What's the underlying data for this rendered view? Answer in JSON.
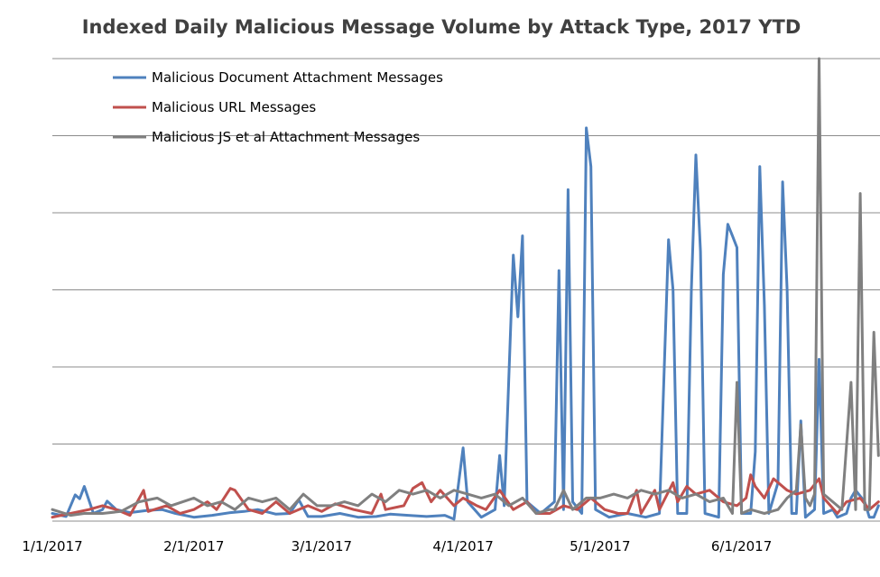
{
  "chart_data": {
    "type": "line",
    "title": "Indexed Daily Malicious Message Volume by Attack Type, 2017 YTD",
    "xlabel": "",
    "ylabel": "",
    "x_ticks": [
      "1/1/2017",
      "2/1/2017",
      "3/1/2017",
      "4/1/2017",
      "5/1/2017",
      "6/1/2017"
    ],
    "x_range": [
      "2017-01-01",
      "2017-06-26"
    ],
    "ylim": [
      0,
      1.2
    ],
    "y_gridlines": [
      0.2,
      0.4,
      0.6,
      0.8,
      1.0,
      1.2
    ],
    "y_tick_labels_shown": false,
    "grid": true,
    "legend_position": "top-left",
    "series": [
      {
        "name": "Malicious Document Attachment Messages",
        "color": "#4f81bd",
        "points": [
          [
            "2017-01-01",
            0.02
          ],
          [
            "2017-01-04",
            0.012
          ],
          [
            "2017-01-06",
            0.068
          ],
          [
            "2017-01-07",
            0.058
          ],
          [
            "2017-01-08",
            0.09
          ],
          [
            "2017-01-10",
            0.02
          ],
          [
            "2017-01-12",
            0.03
          ],
          [
            "2017-01-13",
            0.052
          ],
          [
            "2017-01-15",
            0.03
          ],
          [
            "2017-01-18",
            0.022
          ],
          [
            "2017-01-22",
            0.028
          ],
          [
            "2017-01-25",
            0.03
          ],
          [
            "2017-01-28",
            0.02
          ],
          [
            "2017-02-01",
            0.01
          ],
          [
            "2017-02-05",
            0.015
          ],
          [
            "2017-02-09",
            0.022
          ],
          [
            "2017-02-12",
            0.025
          ],
          [
            "2017-02-15",
            0.03
          ],
          [
            "2017-02-19",
            0.018
          ],
          [
            "2017-02-22",
            0.02
          ],
          [
            "2017-02-24",
            0.055
          ],
          [
            "2017-02-26",
            0.012
          ],
          [
            "2017-03-01",
            0.012
          ],
          [
            "2017-03-05",
            0.02
          ],
          [
            "2017-03-09",
            0.01
          ],
          [
            "2017-03-13",
            0.012
          ],
          [
            "2017-03-16",
            0.018
          ],
          [
            "2017-03-20",
            0.015
          ],
          [
            "2017-03-24",
            0.012
          ],
          [
            "2017-03-28",
            0.015
          ],
          [
            "2017-03-30",
            0.005
          ],
          [
            "2017-04-01",
            0.19
          ],
          [
            "2017-04-02",
            0.05
          ],
          [
            "2017-04-05",
            0.01
          ],
          [
            "2017-04-08",
            0.03
          ],
          [
            "2017-04-09",
            0.17
          ],
          [
            "2017-04-10",
            0.04
          ],
          [
            "2017-04-12",
            0.69
          ],
          [
            "2017-04-13",
            0.53
          ],
          [
            "2017-04-14",
            0.74
          ],
          [
            "2017-04-15",
            0.05
          ],
          [
            "2017-04-18",
            0.02
          ],
          [
            "2017-04-21",
            0.05
          ],
          [
            "2017-04-22",
            0.65
          ],
          [
            "2017-04-23",
            0.03
          ],
          [
            "2017-04-24",
            0.86
          ],
          [
            "2017-04-25",
            0.05
          ],
          [
            "2017-04-27",
            0.02
          ],
          [
            "2017-04-28",
            1.02
          ],
          [
            "2017-04-29",
            0.92
          ],
          [
            "2017-04-30",
            0.03
          ],
          [
            "2017-05-03",
            0.01
          ],
          [
            "2017-05-07",
            0.02
          ],
          [
            "2017-05-11",
            0.01
          ],
          [
            "2017-05-14",
            0.02
          ],
          [
            "2017-05-16",
            0.73
          ],
          [
            "2017-05-17",
            0.6
          ],
          [
            "2017-05-18",
            0.02
          ],
          [
            "2017-05-20",
            0.02
          ],
          [
            "2017-05-21",
            0.6
          ],
          [
            "2017-05-22",
            0.95
          ],
          [
            "2017-05-23",
            0.7
          ],
          [
            "2017-05-24",
            0.02
          ],
          [
            "2017-05-27",
            0.01
          ],
          [
            "2017-05-28",
            0.64
          ],
          [
            "2017-05-29",
            0.77
          ],
          [
            "2017-05-30",
            0.74
          ],
          [
            "2017-05-31",
            0.71
          ],
          [
            "2017-06-01",
            0.02
          ],
          [
            "2017-06-03",
            0.02
          ],
          [
            "2017-06-04",
            0.18
          ],
          [
            "2017-06-05",
            0.92
          ],
          [
            "2017-06-06",
            0.56
          ],
          [
            "2017-06-07",
            0.02
          ],
          [
            "2017-06-09",
            0.1
          ],
          [
            "2017-06-10",
            0.88
          ],
          [
            "2017-06-11",
            0.6
          ],
          [
            "2017-06-12",
            0.02
          ],
          [
            "2017-06-13",
            0.02
          ],
          [
            "2017-06-14",
            0.26
          ],
          [
            "2017-06-15",
            0.01
          ],
          [
            "2017-06-17",
            0.03
          ],
          [
            "2017-06-18",
            0.42
          ],
          [
            "2017-06-19",
            0.02
          ],
          [
            "2017-06-21",
            0.03
          ],
          [
            "2017-06-22",
            0.01
          ],
          [
            "2017-06-24",
            0.02
          ],
          [
            "2017-06-25",
            0.06
          ],
          [
            "2017-06-26",
            0.08
          ],
          [
            "2017-06-28",
            0.05
          ],
          [
            "2017-06-29",
            0.01
          ],
          [
            "2017-06-30",
            0.01
          ],
          [
            "2017-07-01",
            0.04
          ]
        ]
      },
      {
        "name": "Malicious URL Messages",
        "color": "#c0504d",
        "points": [
          [
            "2017-01-01",
            0.01
          ],
          [
            "2017-01-05",
            0.02
          ],
          [
            "2017-01-09",
            0.03
          ],
          [
            "2017-01-12",
            0.04
          ],
          [
            "2017-01-15",
            0.03
          ],
          [
            "2017-01-18",
            0.015
          ],
          [
            "2017-01-21",
            0.08
          ],
          [
            "2017-01-22",
            0.025
          ],
          [
            "2017-01-26",
            0.04
          ],
          [
            "2017-01-29",
            0.02
          ],
          [
            "2017-02-01",
            0.03
          ],
          [
            "2017-02-04",
            0.05
          ],
          [
            "2017-02-06",
            0.03
          ],
          [
            "2017-02-09",
            0.085
          ],
          [
            "2017-02-10",
            0.08
          ],
          [
            "2017-02-13",
            0.03
          ],
          [
            "2017-02-16",
            0.02
          ],
          [
            "2017-02-19",
            0.05
          ],
          [
            "2017-02-22",
            0.02
          ],
          [
            "2017-02-26",
            0.04
          ],
          [
            "2017-03-01",
            0.025
          ],
          [
            "2017-03-04",
            0.045
          ],
          [
            "2017-03-08",
            0.03
          ],
          [
            "2017-03-12",
            0.02
          ],
          [
            "2017-03-14",
            0.07
          ],
          [
            "2017-03-15",
            0.03
          ],
          [
            "2017-03-19",
            0.04
          ],
          [
            "2017-03-21",
            0.085
          ],
          [
            "2017-03-23",
            0.1
          ],
          [
            "2017-03-25",
            0.05
          ],
          [
            "2017-03-27",
            0.08
          ],
          [
            "2017-03-30",
            0.04
          ],
          [
            "2017-04-01",
            0.06
          ],
          [
            "2017-04-04",
            0.04
          ],
          [
            "2017-04-06",
            0.03
          ],
          [
            "2017-04-09",
            0.08
          ],
          [
            "2017-04-12",
            0.03
          ],
          [
            "2017-04-15",
            0.05
          ],
          [
            "2017-04-17",
            0.02
          ],
          [
            "2017-04-20",
            0.02
          ],
          [
            "2017-04-23",
            0.04
          ],
          [
            "2017-04-26",
            0.03
          ],
          [
            "2017-04-29",
            0.06
          ],
          [
            "2017-05-02",
            0.03
          ],
          [
            "2017-05-05",
            0.02
          ],
          [
            "2017-05-07",
            0.02
          ],
          [
            "2017-05-09",
            0.08
          ],
          [
            "2017-05-10",
            0.02
          ],
          [
            "2017-05-13",
            0.08
          ],
          [
            "2017-05-14",
            0.03
          ],
          [
            "2017-05-17",
            0.1
          ],
          [
            "2017-05-18",
            0.05
          ],
          [
            "2017-05-20",
            0.09
          ],
          [
            "2017-05-22",
            0.07
          ],
          [
            "2017-05-25",
            0.08
          ],
          [
            "2017-05-28",
            0.05
          ],
          [
            "2017-05-31",
            0.04
          ],
          [
            "2017-06-02",
            0.06
          ],
          [
            "2017-06-03",
            0.12
          ],
          [
            "2017-06-04",
            0.09
          ],
          [
            "2017-06-06",
            0.06
          ],
          [
            "2017-06-08",
            0.11
          ],
          [
            "2017-06-11",
            0.08
          ],
          [
            "2017-06-13",
            0.07
          ],
          [
            "2017-06-16",
            0.08
          ],
          [
            "2017-06-18",
            0.11
          ],
          [
            "2017-06-19",
            0.06
          ],
          [
            "2017-06-22",
            0.02
          ],
          [
            "2017-06-24",
            0.05
          ],
          [
            "2017-06-27",
            0.06
          ],
          [
            "2017-06-29",
            0.03
          ],
          [
            "2017-07-01",
            0.05
          ]
        ]
      },
      {
        "name": "Malicious JS et al Attachment Messages",
        "color": "#808080",
        "points": [
          [
            "2017-01-01",
            0.03
          ],
          [
            "2017-01-05",
            0.015
          ],
          [
            "2017-01-08",
            0.02
          ],
          [
            "2017-01-12",
            0.02
          ],
          [
            "2017-01-16",
            0.025
          ],
          [
            "2017-01-20",
            0.05
          ],
          [
            "2017-01-24",
            0.06
          ],
          [
            "2017-01-27",
            0.04
          ],
          [
            "2017-02-01",
            0.06
          ],
          [
            "2017-02-04",
            0.04
          ],
          [
            "2017-02-07",
            0.05
          ],
          [
            "2017-02-10",
            0.03
          ],
          [
            "2017-02-13",
            0.06
          ],
          [
            "2017-02-16",
            0.05
          ],
          [
            "2017-02-19",
            0.06
          ],
          [
            "2017-02-22",
            0.03
          ],
          [
            "2017-02-25",
            0.07
          ],
          [
            "2017-02-28",
            0.04
          ],
          [
            "2017-03-03",
            0.04
          ],
          [
            "2017-03-06",
            0.05
          ],
          [
            "2017-03-09",
            0.04
          ],
          [
            "2017-03-12",
            0.07
          ],
          [
            "2017-03-15",
            0.05
          ],
          [
            "2017-03-18",
            0.08
          ],
          [
            "2017-03-21",
            0.07
          ],
          [
            "2017-03-24",
            0.08
          ],
          [
            "2017-03-27",
            0.06
          ],
          [
            "2017-03-30",
            0.08
          ],
          [
            "2017-04-02",
            0.07
          ],
          [
            "2017-04-05",
            0.06
          ],
          [
            "2017-04-08",
            0.07
          ],
          [
            "2017-04-11",
            0.04
          ],
          [
            "2017-04-14",
            0.06
          ],
          [
            "2017-04-17",
            0.02
          ],
          [
            "2017-04-20",
            0.03
          ],
          [
            "2017-04-21",
            0.03
          ],
          [
            "2017-04-23",
            0.08
          ],
          [
            "2017-04-25",
            0.03
          ],
          [
            "2017-04-28",
            0.06
          ],
          [
            "2017-05-01",
            0.06
          ],
          [
            "2017-05-04",
            0.07
          ],
          [
            "2017-05-07",
            0.06
          ],
          [
            "2017-05-10",
            0.08
          ],
          [
            "2017-05-13",
            0.07
          ],
          [
            "2017-05-16",
            0.08
          ],
          [
            "2017-05-19",
            0.06
          ],
          [
            "2017-05-22",
            0.07
          ],
          [
            "2017-05-25",
            0.05
          ],
          [
            "2017-05-28",
            0.06
          ],
          [
            "2017-05-30",
            0.02
          ],
          [
            "2017-05-31",
            0.36
          ],
          [
            "2017-06-01",
            0.02
          ],
          [
            "2017-06-03",
            0.03
          ],
          [
            "2017-06-06",
            0.02
          ],
          [
            "2017-06-09",
            0.03
          ],
          [
            "2017-06-11",
            0.06
          ],
          [
            "2017-06-13",
            0.08
          ],
          [
            "2017-06-14",
            0.25
          ],
          [
            "2017-06-15",
            0.06
          ],
          [
            "2017-06-16",
            0.04
          ],
          [
            "2017-06-17",
            0.07
          ],
          [
            "2017-06-18",
            1.2
          ],
          [
            "2017-06-19",
            0.07
          ],
          [
            "2017-06-21",
            0.05
          ],
          [
            "2017-06-23",
            0.03
          ],
          [
            "2017-06-25",
            0.36
          ],
          [
            "2017-06-26",
            0.03
          ],
          [
            "2017-06-27",
            0.85
          ],
          [
            "2017-06-28",
            0.03
          ],
          [
            "2017-06-29",
            0.03
          ],
          [
            "2017-06-30",
            0.49
          ],
          [
            "2017-07-01",
            0.17
          ]
        ]
      }
    ]
  }
}
